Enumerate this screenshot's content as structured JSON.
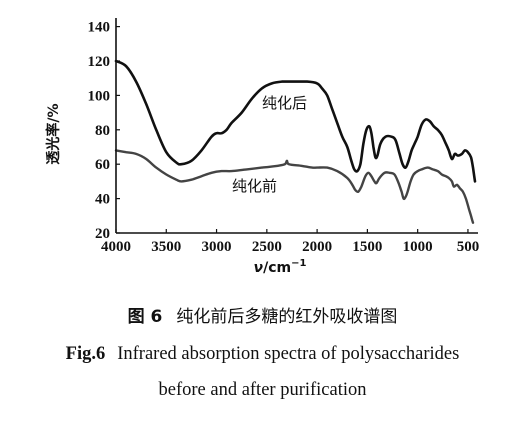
{
  "chart_data": {
    "type": "line",
    "xlabel_sym": "ν",
    "xlabel_unit": "/cm",
    "xlabel_exp": "−1",
    "ylabel": "透光率/%",
    "xlim": [
      4000,
      400
    ],
    "ylim": [
      20,
      145
    ],
    "x_ticks": [
      4000,
      3500,
      3000,
      2500,
      2000,
      1500,
      1000,
      500
    ],
    "y_ticks": [
      20,
      40,
      60,
      80,
      100,
      120,
      140
    ],
    "grid": false,
    "series": [
      {
        "name": "纯化后",
        "color": "#111111",
        "points": [
          [
            4000,
            120
          ],
          [
            3900,
            117
          ],
          [
            3800,
            108
          ],
          [
            3700,
            95
          ],
          [
            3600,
            80
          ],
          [
            3500,
            67
          ],
          [
            3400,
            61
          ],
          [
            3350,
            60
          ],
          [
            3250,
            62
          ],
          [
            3150,
            68
          ],
          [
            3050,
            76
          ],
          [
            3000,
            78
          ],
          [
            2950,
            78
          ],
          [
            2900,
            80
          ],
          [
            2850,
            84
          ],
          [
            2750,
            90
          ],
          [
            2650,
            98
          ],
          [
            2550,
            104
          ],
          [
            2450,
            107
          ],
          [
            2350,
            108
          ],
          [
            2250,
            108
          ],
          [
            2100,
            108
          ],
          [
            2000,
            107
          ],
          [
            1950,
            104
          ],
          [
            1900,
            100
          ],
          [
            1850,
            92
          ],
          [
            1800,
            84
          ],
          [
            1750,
            76
          ],
          [
            1700,
            70
          ],
          [
            1660,
            62
          ],
          [
            1630,
            57
          ],
          [
            1600,
            56
          ],
          [
            1570,
            60
          ],
          [
            1540,
            72
          ],
          [
            1510,
            80
          ],
          [
            1480,
            82
          ],
          [
            1460,
            78
          ],
          [
            1440,
            70
          ],
          [
            1420,
            64
          ],
          [
            1400,
            65
          ],
          [
            1370,
            72
          ],
          [
            1320,
            76
          ],
          [
            1260,
            76
          ],
          [
            1220,
            74
          ],
          [
            1180,
            66
          ],
          [
            1150,
            60
          ],
          [
            1120,
            58
          ],
          [
            1090,
            62
          ],
          [
            1060,
            68
          ],
          [
            1030,
            72
          ],
          [
            1000,
            76
          ],
          [
            960,
            83
          ],
          [
            920,
            86
          ],
          [
            880,
            85
          ],
          [
            840,
            82
          ],
          [
            800,
            80
          ],
          [
            760,
            77
          ],
          [
            720,
            72
          ],
          [
            690,
            68
          ],
          [
            660,
            63
          ],
          [
            630,
            66
          ],
          [
            600,
            65
          ],
          [
            560,
            66
          ],
          [
            530,
            68
          ],
          [
            500,
            67
          ],
          [
            470,
            64
          ],
          [
            450,
            58
          ],
          [
            430,
            50
          ]
        ]
      },
      {
        "name": "纯化前",
        "color": "#444444",
        "points": [
          [
            4000,
            68
          ],
          [
            3900,
            67
          ],
          [
            3800,
            66
          ],
          [
            3700,
            63
          ],
          [
            3600,
            58
          ],
          [
            3500,
            54
          ],
          [
            3400,
            51
          ],
          [
            3350,
            50
          ],
          [
            3250,
            51
          ],
          [
            3150,
            53
          ],
          [
            3050,
            55
          ],
          [
            2950,
            56
          ],
          [
            2850,
            56
          ],
          [
            2700,
            57
          ],
          [
            2550,
            58
          ],
          [
            2400,
            59
          ],
          [
            2320,
            60
          ],
          [
            2300,
            62
          ],
          [
            2280,
            60
          ],
          [
            2150,
            59
          ],
          [
            2050,
            58
          ],
          [
            2000,
            58
          ],
          [
            1900,
            58
          ],
          [
            1800,
            56
          ],
          [
            1700,
            52
          ],
          [
            1650,
            48
          ],
          [
            1620,
            45
          ],
          [
            1590,
            44
          ],
          [
            1560,
            47
          ],
          [
            1520,
            53
          ],
          [
            1490,
            55
          ],
          [
            1460,
            53
          ],
          [
            1430,
            50
          ],
          [
            1410,
            49
          ],
          [
            1380,
            52
          ],
          [
            1330,
            55
          ],
          [
            1280,
            55
          ],
          [
            1230,
            54
          ],
          [
            1190,
            49
          ],
          [
            1160,
            44
          ],
          [
            1140,
            40
          ],
          [
            1120,
            41
          ],
          [
            1100,
            44
          ],
          [
            1070,
            50
          ],
          [
            1040,
            54
          ],
          [
            1000,
            56
          ],
          [
            960,
            57
          ],
          [
            900,
            58
          ],
          [
            850,
            57
          ],
          [
            800,
            56
          ],
          [
            760,
            54
          ],
          [
            720,
            53
          ],
          [
            690,
            52
          ],
          [
            660,
            50
          ],
          [
            640,
            47
          ],
          [
            610,
            48
          ],
          [
            580,
            46
          ],
          [
            550,
            44
          ],
          [
            520,
            40
          ],
          [
            490,
            34
          ],
          [
            470,
            30
          ],
          [
            450,
            26
          ]
        ]
      }
    ]
  },
  "caption": {
    "cn_label": "图 6",
    "cn_text": "纯化前后多糖的红外吸收谱图",
    "en_label": "Fig.6",
    "en_line1": "Infrared absorption spectra of polysaccharides",
    "en_line2": "before and after purification"
  }
}
